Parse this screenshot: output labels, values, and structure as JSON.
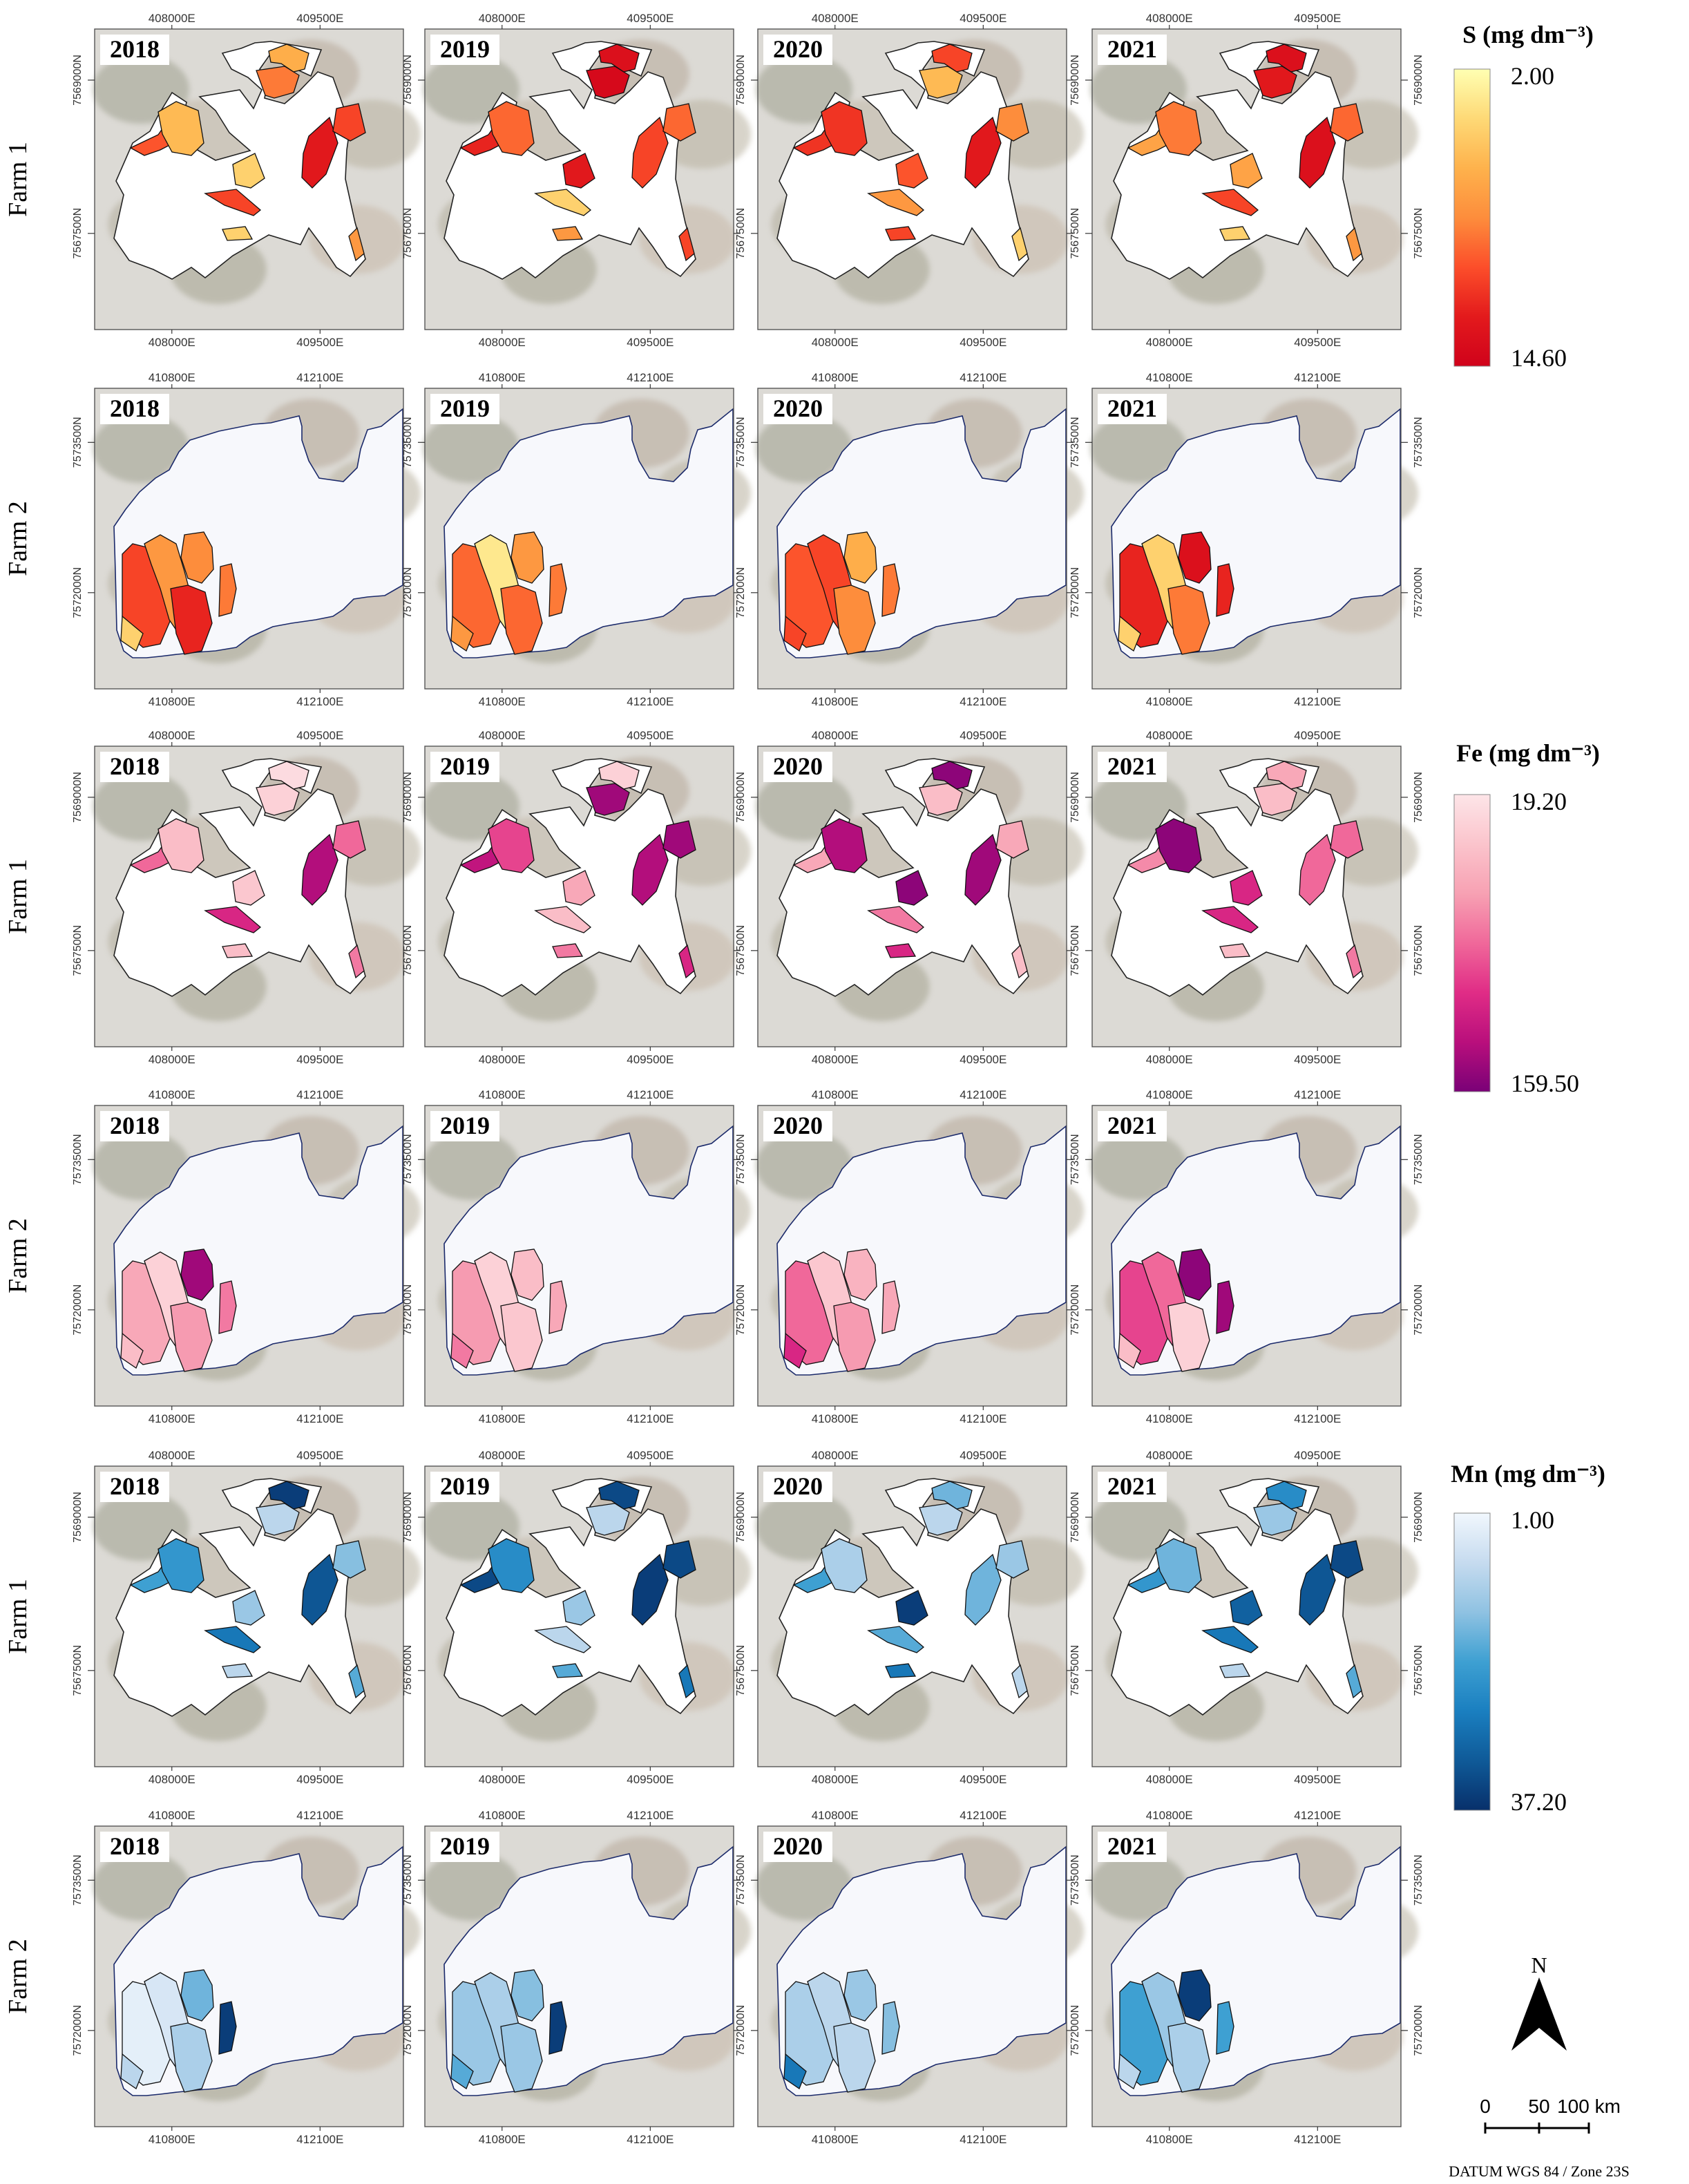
{
  "figure": {
    "years": [
      "2018",
      "2019",
      "2020",
      "2021"
    ],
    "farm1_ticks": {
      "x": [
        "408000E",
        "409500E"
      ],
      "y_right": [
        "7569000N",
        "7567500N"
      ],
      "y_left": [
        "7567500N"
      ]
    },
    "farm2_ticks": {
      "x": [
        "410800E",
        "412100E"
      ],
      "y_right": [
        "7573500N",
        "7572000N"
      ],
      "y_left": [
        "7572000N"
      ]
    },
    "rows": [
      {
        "label": "Farm 1",
        "farm": "farm1",
        "nutrient": "S",
        "values": [
          {
            "field_a": 0.55,
            "field_b": 0.35,
            "field_c": 0.65,
            "field_d": 0.3,
            "field_e": 0.85,
            "field_f": 0.2,
            "field_g": 0.7
          },
          {
            "field_a": 0.95,
            "field_b": 0.9,
            "field_c": 0.8,
            "field_d": 0.6,
            "field_e": 0.7,
            "field_f": 0.85,
            "field_g": 0.6
          },
          {
            "field_a": 0.3,
            "field_b": 0.7,
            "field_c": 0.75,
            "field_d": 0.75,
            "field_e": 0.85,
            "field_f": 0.65,
            "field_g": 0.5
          },
          {
            "field_a": 0.85,
            "field_b": 0.9,
            "field_c": 0.4,
            "field_d": 0.55,
            "field_e": 0.9,
            "field_f": 0.4,
            "field_g": 0.6
          }
        ]
      },
      {
        "label": "Farm 2",
        "farm": "farm2",
        "nutrient": "S",
        "values": [
          {
            "field_a": 0.7,
            "field_b": 0.45,
            "field_c": 0.5,
            "field_d": 0.8,
            "field_e": 0.55
          },
          {
            "field_a": 0.6,
            "field_b": 0.1,
            "field_c": 0.45,
            "field_d": 0.6,
            "field_e": 0.55
          },
          {
            "field_a": 0.65,
            "field_b": 0.7,
            "field_c": 0.35,
            "field_d": 0.5,
            "field_e": 0.55
          },
          {
            "field_a": 0.8,
            "field_b": 0.2,
            "field_c": 0.9,
            "field_d": 0.55,
            "field_e": 0.8
          }
        ]
      },
      {
        "label": "Farm 1",
        "farm": "farm1",
        "nutrient": "Fe",
        "values": [
          {
            "field_a": 0.1,
            "field_b": 0.05,
            "field_c": 0.5,
            "field_d": 0.2,
            "field_e": 0.85,
            "field_f": 0.15,
            "field_g": 0.5
          },
          {
            "field_a": 0.9,
            "field_b": 0.1,
            "field_c": 0.8,
            "field_d": 0.6,
            "field_e": 0.85,
            "field_f": 0.3,
            "field_g": 0.9
          },
          {
            "field_a": 0.2,
            "field_b": 0.95,
            "field_c": 0.3,
            "field_d": 0.85,
            "field_e": 0.9,
            "field_f": 0.95,
            "field_g": 0.3
          },
          {
            "field_a": 0.2,
            "field_b": 0.3,
            "field_c": 0.4,
            "field_d": 0.95,
            "field_e": 0.5,
            "field_f": 0.7,
            "field_g": 0.5
          }
        ]
      },
      {
        "label": "Farm 2",
        "farm": "farm2",
        "nutrient": "Fe",
        "values": [
          {
            "field_a": 0.3,
            "field_b": 0.1,
            "field_c": 0.9,
            "field_d": 0.35,
            "field_e": 0.45
          },
          {
            "field_a": 0.35,
            "field_b": 0.1,
            "field_c": 0.2,
            "field_d": 0.15,
            "field_e": 0.3
          },
          {
            "field_a": 0.5,
            "field_b": 0.15,
            "field_c": 0.25,
            "field_d": 0.35,
            "field_e": 0.3
          },
          {
            "field_a": 0.6,
            "field_b": 0.5,
            "field_c": 0.95,
            "field_d": 0.1,
            "field_e": 0.9
          }
        ]
      },
      {
        "label": "Farm 1",
        "farm": "farm1",
        "nutrient": "Mn",
        "values": [
          {
            "field_a": 0.2,
            "field_b": 0.95,
            "field_c": 0.5,
            "field_d": 0.55,
            "field_e": 0.85,
            "field_f": 0.3,
            "field_g": 0.35
          },
          {
            "field_a": 0.2,
            "field_b": 0.9,
            "field_c": 0.9,
            "field_d": 0.6,
            "field_e": 0.95,
            "field_f": 0.3,
            "field_g": 0.9
          },
          {
            "field_a": 0.2,
            "field_b": 0.4,
            "field_c": 0.5,
            "field_d": 0.25,
            "field_e": 0.4,
            "field_f": 0.95,
            "field_g": 0.3
          },
          {
            "field_a": 0.3,
            "field_b": 0.6,
            "field_c": 0.55,
            "field_d": 0.4,
            "field_e": 0.85,
            "field_f": 0.8,
            "field_g": 0.9
          }
        ]
      },
      {
        "label": "Farm 2",
        "farm": "farm2",
        "nutrient": "Mn",
        "values": [
          {
            "field_a": 0.05,
            "field_b": 0.1,
            "field_c": 0.4,
            "field_d": 0.25,
            "field_e": 0.95
          },
          {
            "field_a": 0.3,
            "field_b": 0.25,
            "field_c": 0.35,
            "field_d": 0.3,
            "field_e": 0.95
          },
          {
            "field_a": 0.25,
            "field_b": 0.2,
            "field_c": 0.3,
            "field_d": 0.2,
            "field_e": 0.35
          },
          {
            "field_a": 0.5,
            "field_b": 0.3,
            "field_c": 0.95,
            "field_d": 0.25,
            "field_e": 0.5
          }
        ]
      }
    ]
  },
  "legends": {
    "S": {
      "title": "S (mg dm⁻³)",
      "min": "2.00",
      "max": "14.60",
      "colors": [
        "#ffffb2",
        "#fed976",
        "#feb24c",
        "#fd8d3c",
        "#fc4e2a",
        "#e31a1c",
        "#d0021b"
      ]
    },
    "Fe": {
      "title": "Fe (mg dm⁻³)",
      "min": "19.20",
      "max": "159.50",
      "colors": [
        "#fde5e8",
        "#fbc4cc",
        "#f7a1b3",
        "#f0689a",
        "#e02c86",
        "#b90f7c",
        "#7a0177"
      ]
    },
    "Mn": {
      "title": "Mn (mg dm⁻³)",
      "min": "1.00",
      "max": "37.20",
      "colors": [
        "#f1f7fd",
        "#c6dbef",
        "#8fc2e2",
        "#3ea0d2",
        "#1a7fc0",
        "#0f5a98",
        "#08306b"
      ]
    }
  },
  "north_arrow": {
    "label": "N"
  },
  "scale_bar": {
    "labels": [
      "0",
      "50",
      "100 km"
    ]
  },
  "datum": "DATUM WGS 84 / Zone 23S"
}
